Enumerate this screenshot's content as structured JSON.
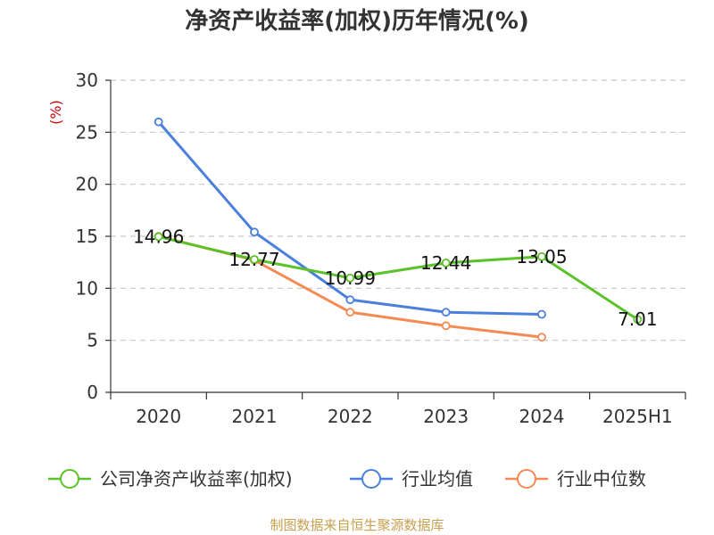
{
  "chart_data": {
    "type": "line",
    "title": "净资产收益率(加权)历年情况(%)",
    "ylabel": "(%)",
    "categories": [
      "2020",
      "2021",
      "2022",
      "2023",
      "2024",
      "2025H1"
    ],
    "ylim": [
      0,
      30
    ],
    "yticks": [
      0,
      5,
      10,
      15,
      20,
      25,
      30
    ],
    "grid": true,
    "legend_position": "bottom",
    "series": [
      {
        "name": "公司净资产收益率(加权)",
        "color": "#5bc22a",
        "values": [
          14.96,
          12.77,
          10.99,
          12.44,
          13.05,
          7.01
        ],
        "labels": [
          "14.96",
          "12.77",
          "10.99",
          "12.44",
          "13.05",
          "7.01"
        ]
      },
      {
        "name": "行业均值",
        "color": "#4a7fdc",
        "values": [
          26.0,
          15.4,
          8.9,
          7.7,
          7.5,
          null
        ]
      },
      {
        "name": "行业中位数",
        "color": "#f58a55",
        "values": [
          15.0,
          12.7,
          7.7,
          6.4,
          5.3,
          null
        ]
      }
    ],
    "source": "制图数据来自恒生聚源数据库",
    "title_color": "#333333",
    "ylabel_color": "#cc0000",
    "source_color": "#c8a050"
  }
}
